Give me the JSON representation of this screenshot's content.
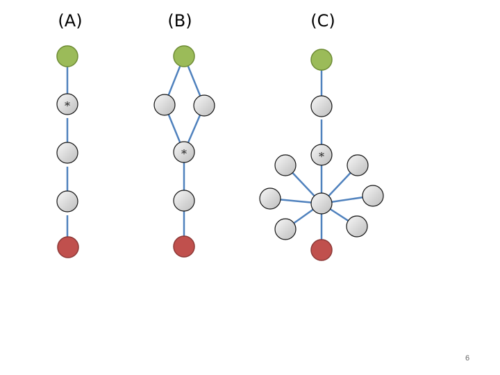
{
  "panels": [
    {
      "label": "(A)"
    },
    {
      "label": "(B)"
    },
    {
      "label": "(C)"
    }
  ],
  "node_marker": "*",
  "page_number": "6",
  "colors": {
    "start_node": "#9bbb59",
    "end_node": "#c0504d",
    "edge": "#4f81bd",
    "node": "#d9d9d9"
  }
}
